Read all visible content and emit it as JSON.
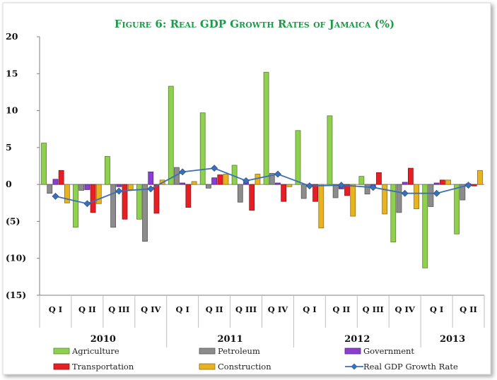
{
  "chart_data": {
    "type": "bar",
    "title": "Figure 6: Real GDP Growth Rates of  Jamaica (%)",
    "xlabel": "",
    "ylabel": "",
    "ylim": [
      -15,
      20
    ],
    "y_ticks": [
      20,
      15,
      10,
      5,
      0,
      -5,
      -10,
      -15
    ],
    "y_tick_labels": [
      "20",
      "15",
      "10",
      "5",
      "0",
      "(5)",
      "(10)",
      "(15)"
    ],
    "categories": [
      "Q I",
      "Q II",
      "Q III",
      "Q IV",
      "Q I",
      "Q II",
      "Q III",
      "Q IV",
      "Q I",
      "Q II",
      "Q III",
      "Q IV",
      "Q I",
      "Q II"
    ],
    "year_groups": [
      {
        "label": "2010",
        "count": 4
      },
      {
        "label": "2011",
        "count": 4
      },
      {
        "label": "2012",
        "count": 4
      },
      {
        "label": "2013",
        "count": 2
      }
    ],
    "grid": false,
    "legend_position": "bottom",
    "series": [
      {
        "name": "Agriculture",
        "kind": "bar",
        "color": "#8fd14f",
        "values": [
          5.6,
          -5.8,
          3.8,
          -4.7,
          13.3,
          9.7,
          2.6,
          15.2,
          7.3,
          9.3,
          1.1,
          -7.8,
          -11.3,
          -6.7
        ]
      },
      {
        "name": "Petroleum",
        "kind": "bar",
        "color": "#8c8c8c",
        "values": [
          -1.2,
          -0.8,
          -5.8,
          -7.7,
          2.3,
          -0.5,
          -2.4,
          1.5,
          -1.9,
          -1.8,
          -1.3,
          -3.8,
          -3.0,
          -2.1
        ]
      },
      {
        "name": "Government",
        "kind": "bar",
        "color": "#8a3fd1",
        "values": [
          0.7,
          -0.7,
          -0.3,
          1.7,
          0.2,
          0.9,
          0.3,
          0.2,
          -0.3,
          -0.6,
          -0.4,
          0.3,
          0.2,
          0.1
        ]
      },
      {
        "name": "Transportation",
        "kind": "bar",
        "color": "#e81e25",
        "values": [
          1.9,
          -3.8,
          -4.7,
          -3.9,
          -3.1,
          1.3,
          -3.5,
          -2.3,
          -2.3,
          -1.5,
          1.6,
          2.2,
          0.6,
          -0.2
        ]
      },
      {
        "name": "Construction",
        "kind": "bar",
        "color": "#e8b321",
        "values": [
          -2.5,
          -2.6,
          -0.7,
          0.6,
          0.4,
          1.4,
          1.4,
          -0.3,
          -5.9,
          -4.3,
          -4.0,
          -3.3,
          0.6,
          1.9
        ]
      },
      {
        "name": "Real GDP Growth Rate",
        "kind": "line",
        "color": "#3b6fb6",
        "values": [
          -1.6,
          -2.6,
          -0.9,
          -0.6,
          1.7,
          2.2,
          0.5,
          1.4,
          -0.2,
          -0.1,
          -0.4,
          -1.2,
          -1.2,
          -0.1
        ]
      }
    ]
  }
}
